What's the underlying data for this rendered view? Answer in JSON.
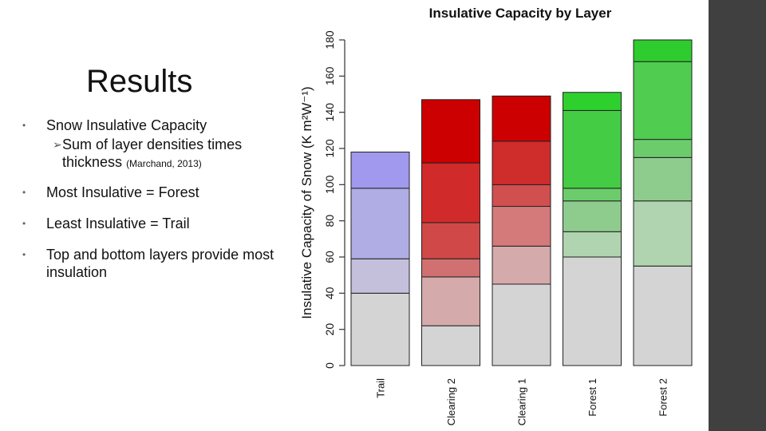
{
  "slide": {
    "title": "Results",
    "bullets": [
      {
        "text": "Snow Insulative Capacity",
        "sub": "Sum of layer densities times thickness",
        "citation": "(Marchand, 2013)"
      },
      {
        "text": "Most Insulative = Forest"
      },
      {
        "text": "Least Insulative = Trail"
      },
      {
        "text": "Top and bottom layers provide most insulation"
      }
    ]
  },
  "chart_data": {
    "type": "stacked-bar",
    "title": "Insulative Capacity by Layer",
    "ylabel": "Insulative Capacity of Snow (K m²W⁻¹)",
    "ylim": [
      0,
      180
    ],
    "yticks": [
      0,
      20,
      40,
      60,
      80,
      100,
      120,
      140,
      160,
      180
    ],
    "categories": [
      "Trail",
      "Clearing 2",
      "Clearing 1",
      "Forest 1",
      "Forest 2"
    ],
    "stacks": [
      {
        "category": "Trail",
        "segments": [
          {
            "value": 40,
            "color": "#d4d4d4"
          },
          {
            "value": 19,
            "color": "#c4c0dc"
          },
          {
            "value": 39,
            "color": "#b0ace4"
          },
          {
            "value": 20,
            "color": "#a099ee"
          }
        ]
      },
      {
        "category": "Clearing 2",
        "segments": [
          {
            "value": 22,
            "color": "#d4d4d4"
          },
          {
            "value": 27,
            "color": "#d4aaaa"
          },
          {
            "value": 10,
            "color": "#d07070"
          },
          {
            "value": 20,
            "color": "#d04848"
          },
          {
            "value": 33,
            "color": "#d02a2a"
          },
          {
            "value": 35,
            "color": "#cc0000"
          }
        ]
      },
      {
        "category": "Clearing 1",
        "segments": [
          {
            "value": 45,
            "color": "#d4d4d4"
          },
          {
            "value": 21,
            "color": "#d4aaaa"
          },
          {
            "value": 22,
            "color": "#d47a7a"
          },
          {
            "value": 12,
            "color": "#d05050"
          },
          {
            "value": 24,
            "color": "#cf2c2c"
          },
          {
            "value": 25,
            "color": "#cc0000"
          }
        ]
      },
      {
        "category": "Forest 1",
        "segments": [
          {
            "value": 60,
            "color": "#d4d4d4"
          },
          {
            "value": 14,
            "color": "#b0d4b0"
          },
          {
            "value": 17,
            "color": "#8ecc8e"
          },
          {
            "value": 7,
            "color": "#6ccc6c"
          },
          {
            "value": 43,
            "color": "#44cc44"
          },
          {
            "value": 10,
            "color": "#2ed02e"
          }
        ]
      },
      {
        "category": "Forest 2",
        "segments": [
          {
            "value": 55,
            "color": "#d4d4d4"
          },
          {
            "value": 36,
            "color": "#b0d4b0"
          },
          {
            "value": 24,
            "color": "#8ecc8e"
          },
          {
            "value": 10,
            "color": "#6ccc6c"
          },
          {
            "value": 43,
            "color": "#50cc50"
          },
          {
            "value": 12,
            "color": "#2ecc2e"
          }
        ]
      }
    ]
  }
}
